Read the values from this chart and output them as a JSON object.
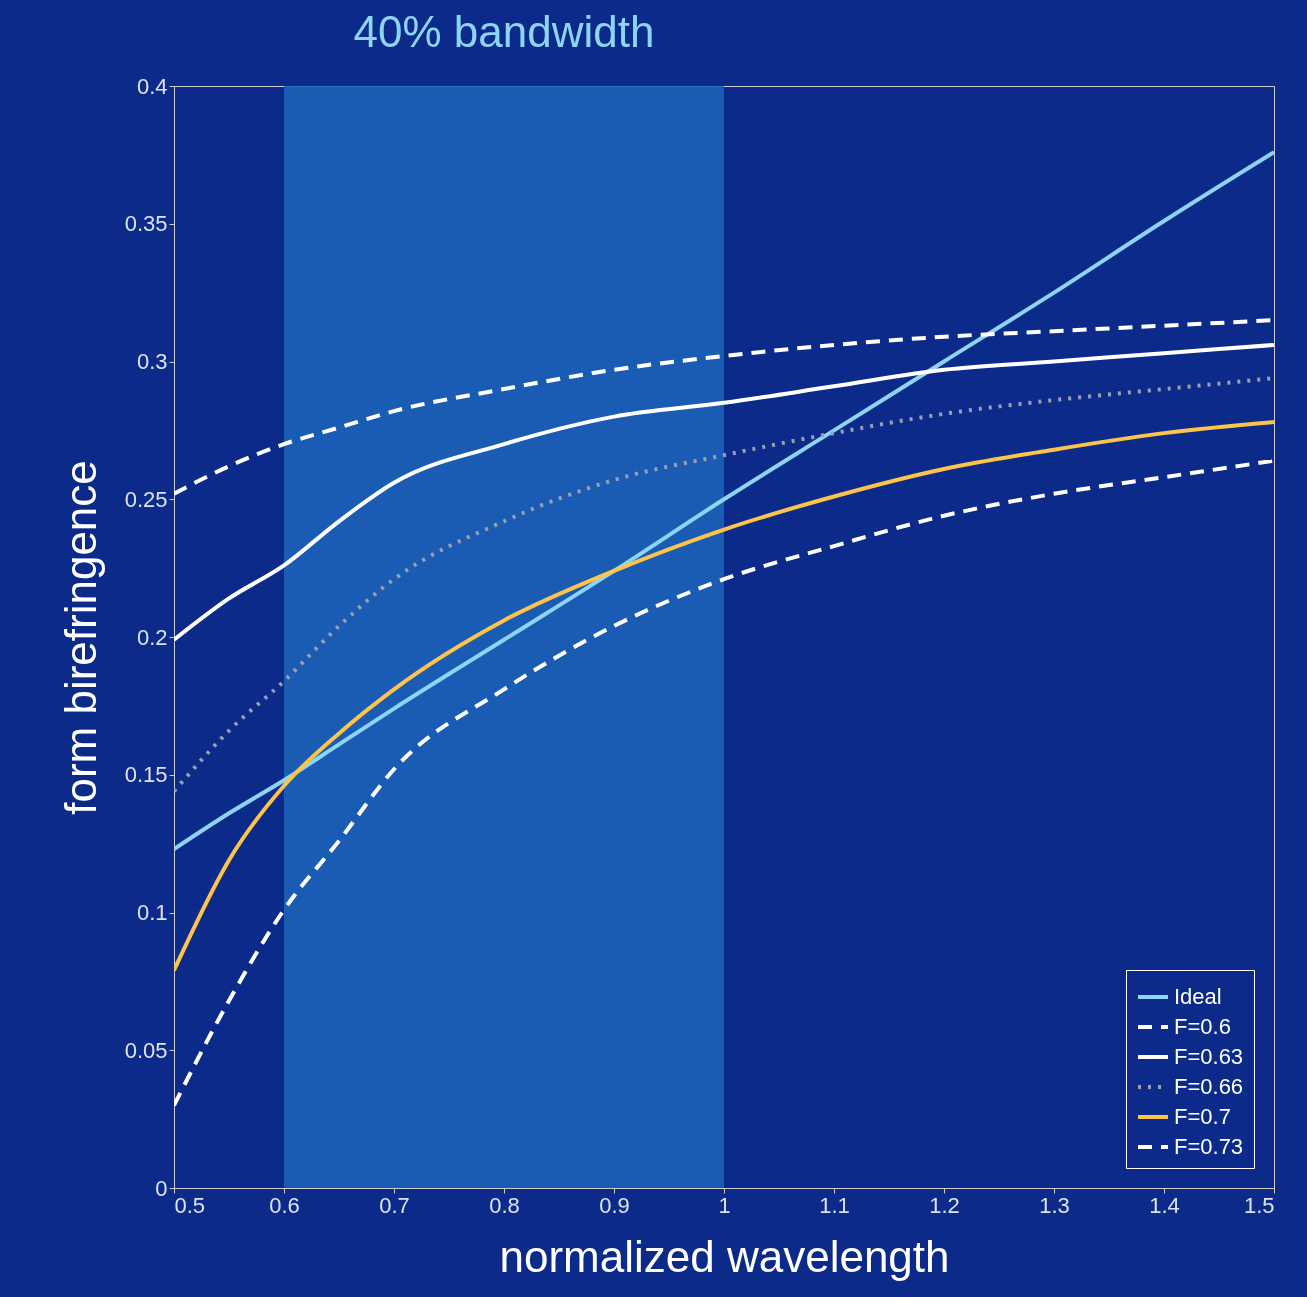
{
  "chart_data": {
    "type": "line",
    "xlabel": "normalized wavelength",
    "ylabel": "form birefringence",
    "x": [
      0.5,
      0.55,
      0.6,
      0.65,
      0.7,
      0.8,
      0.9,
      1.0,
      1.1,
      1.2,
      1.3,
      1.4,
      1.5
    ],
    "series": [
      {
        "name": "Ideal",
        "color": "#8ed4f5",
        "line_style": "solid",
        "values": [
          0.123,
          0.136,
          0.148,
          0.161,
          0.174,
          0.199,
          0.224,
          0.25,
          0.275,
          0.3,
          0.325,
          0.351,
          0.376
        ]
      },
      {
        "name": "F=0.6",
        "color": "#ffffff",
        "line_style": "dashed",
        "values": [
          0.252,
          0.262,
          0.27,
          0.276,
          0.282,
          0.29,
          0.297,
          0.302,
          0.306,
          0.309,
          0.311,
          0.313,
          0.315
        ]
      },
      {
        "name": "F=0.63",
        "color": "#ffffff",
        "line_style": "solid",
        "values": [
          0.199,
          0.214,
          0.226,
          0.242,
          0.256,
          0.27,
          0.28,
          0.285,
          0.291,
          0.297,
          0.3,
          0.303,
          0.306
        ]
      },
      {
        "name": "F=0.66",
        "color": "#9aa0b0",
        "line_style": "dotted",
        "values": [
          0.144,
          0.166,
          0.184,
          0.204,
          0.221,
          0.242,
          0.257,
          0.266,
          0.274,
          0.281,
          0.286,
          0.29,
          0.294
        ]
      },
      {
        "name": "F=0.7",
        "color": "#fcc44a",
        "line_style": "solid",
        "values": [
          0.079,
          0.119,
          0.146,
          0.165,
          0.181,
          0.206,
          0.224,
          0.239,
          0.251,
          0.261,
          0.268,
          0.274,
          0.278
        ]
      },
      {
        "name": "F=0.73",
        "color": "#ffffff",
        "line_style": "dashed",
        "values": [
          0.03,
          0.068,
          0.101,
          0.126,
          0.152,
          0.181,
          0.204,
          0.221,
          0.233,
          0.244,
          0.252,
          0.258,
          0.264
        ]
      }
    ],
    "bands": [
      {
        "axis": "x",
        "from": 0.6,
        "to": 1.0,
        "label": "40% bandwidth",
        "color": "#1c62b8"
      }
    ],
    "xlim": [
      0.5,
      1.5
    ],
    "xticks": [
      0.5,
      0.6,
      0.7,
      0.8,
      0.9,
      1,
      1.1,
      1.2,
      1.3,
      1.4,
      1.5
    ],
    "ylim": [
      0,
      0.4
    ],
    "yticks": [
      0,
      0.05,
      0.1,
      0.15,
      0.2,
      0.25,
      0.3,
      0.35,
      0.4
    ],
    "legend": "bottom right"
  }
}
